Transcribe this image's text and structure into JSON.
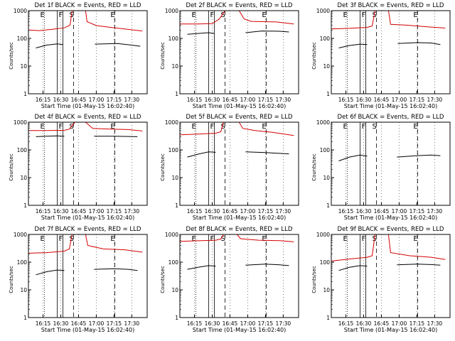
{
  "chart_data": {
    "type": "line",
    "yscale": "log",
    "ylim": [
      1,
      1000
    ],
    "xlim": [
      "16:02:40",
      "17:43:00"
    ],
    "ylabel": "Counts/sec",
    "xlabel": "Start Time (01-May-15 16:02:40)",
    "xticks": [
      "16:15",
      "16:30",
      "16:45",
      "17:00",
      "17:15",
      "17:30"
    ],
    "yticks": [
      "1",
      "10",
      "100",
      "1000"
    ],
    "marker_labels": [
      "E",
      "F",
      "S",
      "E"
    ],
    "colors": {
      "events": "#000000",
      "lld": "#d40000"
    },
    "panels": [
      {
        "title": "Det 1f BLACK = Events, RED = LLD",
        "markers": {
          "E1": 16.27,
          "F1": 16.45,
          "F2": 16.53,
          "S": 16.68,
          "E2": 17.26
        },
        "lld_series": [
          [
            16.05,
            200
          ],
          [
            16.2,
            190
          ],
          [
            16.4,
            215
          ],
          [
            16.55,
            240
          ],
          [
            16.63,
            300
          ],
          [
            16.66,
            1000
          ],
          [
            16.85,
            1000
          ],
          [
            16.87,
            400
          ],
          [
            17.0,
            290
          ],
          [
            17.2,
            250
          ],
          [
            17.65,
            185
          ]
        ],
        "events_series": [
          [
            16.15,
            45
          ],
          [
            16.3,
            57
          ],
          [
            16.45,
            63
          ],
          [
            16.53,
            60
          ],
          [
            16.8,
            null
          ],
          [
            16.98,
            62
          ],
          [
            17.3,
            65
          ],
          [
            17.5,
            57
          ],
          [
            17.62,
            52
          ]
        ]
      },
      {
        "title": "Det 2f BLACK = Events, RED = LLD",
        "markers": {
          "E1": 16.27,
          "F1": 16.45,
          "F2": 16.53,
          "S": 16.68,
          "E2": 17.26
        },
        "lld_series": [
          [
            16.05,
            330
          ],
          [
            16.3,
            330
          ],
          [
            16.5,
            340
          ],
          [
            16.6,
            500
          ],
          [
            16.68,
            1000
          ],
          [
            16.88,
            1000
          ],
          [
            16.95,
            500
          ],
          [
            17.05,
            410
          ],
          [
            17.4,
            390
          ],
          [
            17.65,
            330
          ]
        ],
        "events_series": [
          [
            16.15,
            140
          ],
          [
            16.3,
            150
          ],
          [
            16.45,
            160
          ],
          [
            16.53,
            150
          ],
          [
            16.75,
            null
          ],
          [
            16.97,
            160
          ],
          [
            17.2,
            185
          ],
          [
            17.45,
            180
          ],
          [
            17.58,
            170
          ]
        ]
      },
      {
        "title": "Det 3f BLACK = Events, RED = LLD",
        "markers": {
          "E1": 16.27,
          "F1": 16.45,
          "F2": 16.53,
          "S": 16.68,
          "E2": 17.26
        },
        "lld_series": [
          [
            16.05,
            220
          ],
          [
            16.3,
            230
          ],
          [
            16.55,
            250
          ],
          [
            16.62,
            280
          ],
          [
            16.66,
            1000
          ],
          [
            16.85,
            1000
          ],
          [
            16.88,
            320
          ],
          [
            17.1,
            300
          ],
          [
            17.4,
            260
          ],
          [
            17.65,
            235
          ]
        ],
        "events_series": [
          [
            16.15,
            45
          ],
          [
            16.3,
            55
          ],
          [
            16.45,
            62
          ],
          [
            16.55,
            60
          ],
          [
            16.75,
            null
          ],
          [
            16.98,
            65
          ],
          [
            17.25,
            70
          ],
          [
            17.45,
            68
          ],
          [
            17.58,
            60
          ]
        ]
      },
      {
        "title": "Det 4f BLACK = Events, RED = LLD",
        "markers": {
          "E1": 16.27,
          "F1": 16.45,
          "F2": 16.53,
          "S": 16.68,
          "E2": 17.26
        },
        "lld_series": [
          [
            16.05,
            500
          ],
          [
            16.3,
            500
          ],
          [
            16.55,
            510
          ],
          [
            16.62,
            560
          ],
          [
            16.7,
            1000
          ],
          [
            16.85,
            1000
          ],
          [
            16.95,
            600
          ],
          [
            17.2,
            560
          ],
          [
            17.45,
            540
          ],
          [
            17.65,
            480
          ]
        ],
        "events_series": [
          [
            16.15,
            300
          ],
          [
            16.3,
            310
          ],
          [
            16.45,
            320
          ],
          [
            16.55,
            310
          ],
          [
            16.75,
            null
          ],
          [
            16.97,
            310
          ],
          [
            17.25,
            310
          ],
          [
            17.45,
            305
          ],
          [
            17.58,
            300
          ]
        ]
      },
      {
        "title": "Det 5f BLACK = Events, RED = LLD",
        "markers": {
          "E1": 16.27,
          "F1": 16.45,
          "F2": 16.53,
          "S": 16.68,
          "E2": 17.26
        },
        "lld_series": [
          [
            16.05,
            350
          ],
          [
            16.3,
            370
          ],
          [
            16.55,
            400
          ],
          [
            16.62,
            450
          ],
          [
            16.66,
            1000
          ],
          [
            16.88,
            1000
          ],
          [
            16.93,
            600
          ],
          [
            17.1,
            500
          ],
          [
            17.35,
            430
          ],
          [
            17.65,
            330
          ]
        ],
        "events_series": [
          [
            16.15,
            55
          ],
          [
            16.3,
            70
          ],
          [
            16.45,
            85
          ],
          [
            16.55,
            82
          ],
          [
            16.75,
            null
          ],
          [
            16.97,
            85
          ],
          [
            17.25,
            80
          ],
          [
            17.45,
            75
          ],
          [
            17.58,
            72
          ]
        ]
      },
      {
        "title": "Det 6f BLACK = Events, RED = LLD",
        "markers": {
          "E1": 16.27,
          "F1": 16.45,
          "F2": 16.53,
          "S": 16.68,
          "E2": 17.26
        },
        "lld_series": [],
        "events_series": [
          [
            16.15,
            40
          ],
          [
            16.3,
            55
          ],
          [
            16.45,
            65
          ],
          [
            16.55,
            60
          ],
          [
            16.75,
            null
          ],
          [
            16.97,
            55
          ],
          [
            17.25,
            62
          ],
          [
            17.45,
            65
          ],
          [
            17.58,
            62
          ]
        ]
      },
      {
        "title": "Det 7f BLACK = Events, RED = LLD",
        "markers": {
          "E1": 16.27,
          "F1": 16.45,
          "F2": 16.53,
          "S": 16.68,
          "E2": 17.26
        },
        "lld_series": [
          [
            16.05,
            210
          ],
          [
            16.3,
            220
          ],
          [
            16.55,
            250
          ],
          [
            16.62,
            300
          ],
          [
            16.66,
            1000
          ],
          [
            16.85,
            1000
          ],
          [
            16.88,
            400
          ],
          [
            17.1,
            300
          ],
          [
            17.4,
            280
          ],
          [
            17.65,
            230
          ]
        ],
        "events_series": [
          [
            16.15,
            35
          ],
          [
            16.3,
            45
          ],
          [
            16.45,
            52
          ],
          [
            16.55,
            50
          ],
          [
            16.75,
            null
          ],
          [
            16.97,
            55
          ],
          [
            17.25,
            58
          ],
          [
            17.45,
            55
          ],
          [
            17.58,
            50
          ]
        ]
      },
      {
        "title": "Det 8f BLACK = Events, RED = LLD",
        "markers": {
          "E1": 16.27,
          "F1": 16.45,
          "F2": 16.53,
          "S": 16.68,
          "E2": 17.26
        },
        "lld_series": [
          [
            16.05,
            560
          ],
          [
            16.3,
            590
          ],
          [
            16.55,
            620
          ],
          [
            16.62,
            680
          ],
          [
            16.66,
            1000
          ],
          [
            16.85,
            1000
          ],
          [
            16.9,
            700
          ],
          [
            17.15,
            620
          ],
          [
            17.45,
            600
          ],
          [
            17.65,
            540
          ]
        ],
        "events_series": [
          [
            16.15,
            55
          ],
          [
            16.3,
            65
          ],
          [
            16.45,
            75
          ],
          [
            16.55,
            72
          ],
          [
            16.75,
            null
          ],
          [
            16.97,
            78
          ],
          [
            17.25,
            85
          ],
          [
            17.45,
            80
          ],
          [
            17.58,
            75
          ]
        ]
      },
      {
        "title": "Det 9f BLACK = Events, RED = LLD",
        "markers": {
          "E1": 16.27,
          "F1": 16.45,
          "F2": 16.53,
          "S": 16.68,
          "E2": 17.26
        },
        "lld_series": [
          [
            16.05,
            110
          ],
          [
            16.3,
            130
          ],
          [
            16.55,
            150
          ],
          [
            16.62,
            170
          ],
          [
            16.66,
            1000
          ],
          [
            16.85,
            1000
          ],
          [
            16.88,
            220
          ],
          [
            17.15,
            170
          ],
          [
            17.45,
            150
          ],
          [
            17.65,
            125
          ]
        ],
        "events_series": [
          [
            16.15,
            50
          ],
          [
            16.3,
            65
          ],
          [
            16.45,
            75
          ],
          [
            16.55,
            72
          ],
          [
            16.75,
            null
          ],
          [
            16.97,
            80
          ],
          [
            17.25,
            85
          ],
          [
            17.45,
            82
          ],
          [
            17.58,
            78
          ]
        ]
      }
    ]
  }
}
